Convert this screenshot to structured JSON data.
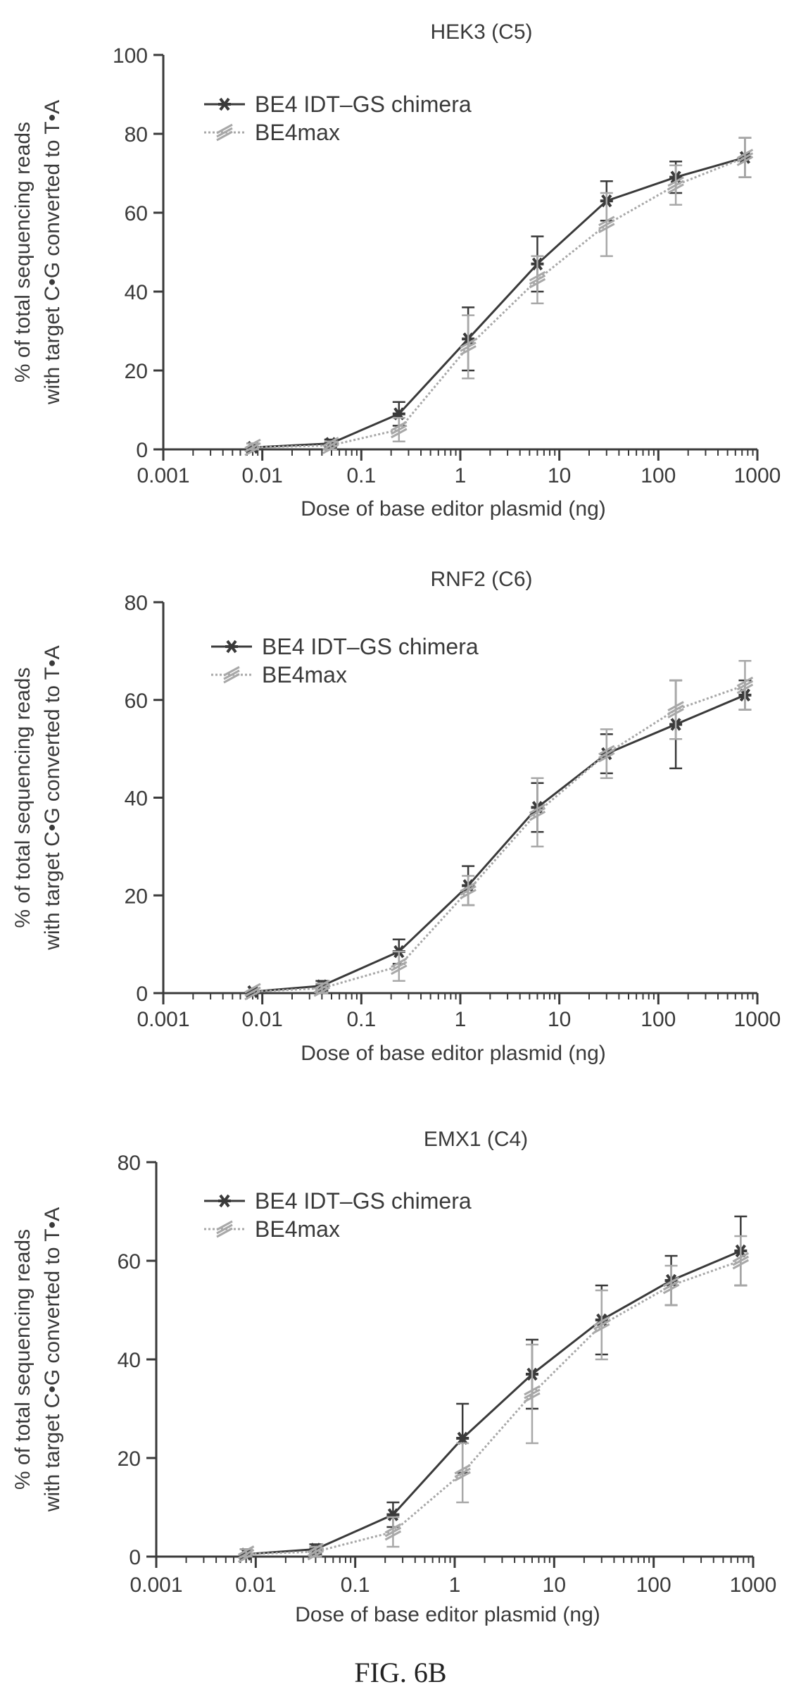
{
  "figure_label": "FIG. 6B",
  "colors": {
    "be4": "#3a3a3a",
    "be4max": "#a8a8a8",
    "axis": "#3a3a3a",
    "text": "#3a3a3a"
  },
  "chart_data": [
    {
      "type": "line",
      "title": "HEK3 (C5)",
      "xlabel": "Dose of base editor plasmid (ng)",
      "ylabel": [
        "% of total sequencing reads",
        "with target C•G converted to T•A"
      ],
      "xscale": "log",
      "xlim": [
        0.001,
        1000
      ],
      "ylim": [
        0,
        100
      ],
      "xticks": [
        0.001,
        0.01,
        0.1,
        1,
        10,
        100,
        1000
      ],
      "xtick_labels": [
        "0.001",
        "0.01",
        "0.1",
        "1",
        "10",
        "100",
        "1000"
      ],
      "yticks": [
        0,
        20,
        40,
        60,
        80,
        100
      ],
      "ytick_labels": [
        "0",
        "20",
        "40",
        "60",
        "80",
        "100"
      ],
      "legend_position": "top-left",
      "x": [
        0.008,
        0.049,
        0.24,
        1.2,
        6,
        30,
        150,
        750
      ],
      "series": [
        {
          "name": "BE4 IDT–GS chimera",
          "values": [
            0.5,
            1.5,
            9,
            28,
            47,
            63,
            69,
            74
          ],
          "errors": [
            1,
            1,
            3,
            8,
            7,
            5,
            4,
            5
          ]
        },
        {
          "name": "BE4max",
          "values": [
            0.5,
            1.0,
            5,
            26,
            43,
            57,
            67,
            74
          ],
          "errors": [
            1,
            1,
            3,
            8,
            6,
            8,
            5,
            5
          ]
        }
      ]
    },
    {
      "type": "line",
      "title": "RNF2 (C6)",
      "xlabel": "Dose of base editor plasmid (ng)",
      "ylabel": [
        "% of total sequencing reads",
        "with target C•G converted to T•A"
      ],
      "xscale": "log",
      "xlim": [
        0.001,
        1000
      ],
      "ylim": [
        0,
        80
      ],
      "xticks": [
        0.001,
        0.01,
        0.1,
        1,
        10,
        100,
        1000
      ],
      "xtick_labels": [
        "0.001",
        "0.01",
        "0.1",
        "1",
        "10",
        "100",
        "1000"
      ],
      "yticks": [
        0,
        20,
        40,
        60,
        80
      ],
      "ytick_labels": [
        "0",
        "20",
        "40",
        "60",
        "80"
      ],
      "legend_position": "top-left",
      "x": [
        0.008,
        0.04,
        0.24,
        1.2,
        6,
        30,
        150,
        750
      ],
      "series": [
        {
          "name": "BE4 IDT–GS chimera",
          "values": [
            0.3,
            1.5,
            8.5,
            22,
            38,
            49,
            55,
            61
          ],
          "errors": [
            0.5,
            1,
            2.5,
            4,
            5,
            4,
            9,
            3
          ]
        },
        {
          "name": "BE4max",
          "values": [
            0.3,
            1.0,
            5.5,
            21,
            37,
            49,
            58,
            63
          ],
          "errors": [
            0.5,
            1,
            3,
            3,
            7,
            5,
            6,
            5
          ]
        }
      ]
    },
    {
      "type": "line",
      "title": "EMX1 (C4)",
      "xlabel": "Dose of base editor plasmid (ng)",
      "ylabel": [
        "% of total sequencing reads",
        "with target C•G converted to T•A"
      ],
      "xscale": "log",
      "xlim": [
        0.001,
        1000
      ],
      "ylim": [
        0,
        80
      ],
      "xticks": [
        0.001,
        0.01,
        0.1,
        1,
        10,
        100,
        1000
      ],
      "xtick_labels": [
        "0.001",
        "0.01",
        "0.1",
        "1",
        "10",
        "100",
        "1000"
      ],
      "yticks": [
        0,
        20,
        40,
        60,
        80
      ],
      "ytick_labels": [
        "0",
        "20",
        "40",
        "60",
        "80"
      ],
      "legend_position": "top-left",
      "x": [
        0.008,
        0.04,
        0.24,
        1.2,
        6,
        30,
        150,
        750
      ],
      "series": [
        {
          "name": "BE4 IDT–GS chimera",
          "values": [
            0.5,
            1.5,
            8.5,
            24,
            37,
            48,
            56,
            62
          ],
          "errors": [
            1,
            1,
            2.5,
            7,
            7,
            7,
            5,
            7
          ]
        },
        {
          "name": "BE4max",
          "values": [
            0.5,
            1.0,
            5,
            17,
            33,
            47,
            55,
            60
          ],
          "errors": [
            1,
            1,
            3,
            6,
            10,
            7,
            4,
            5
          ]
        }
      ]
    }
  ]
}
